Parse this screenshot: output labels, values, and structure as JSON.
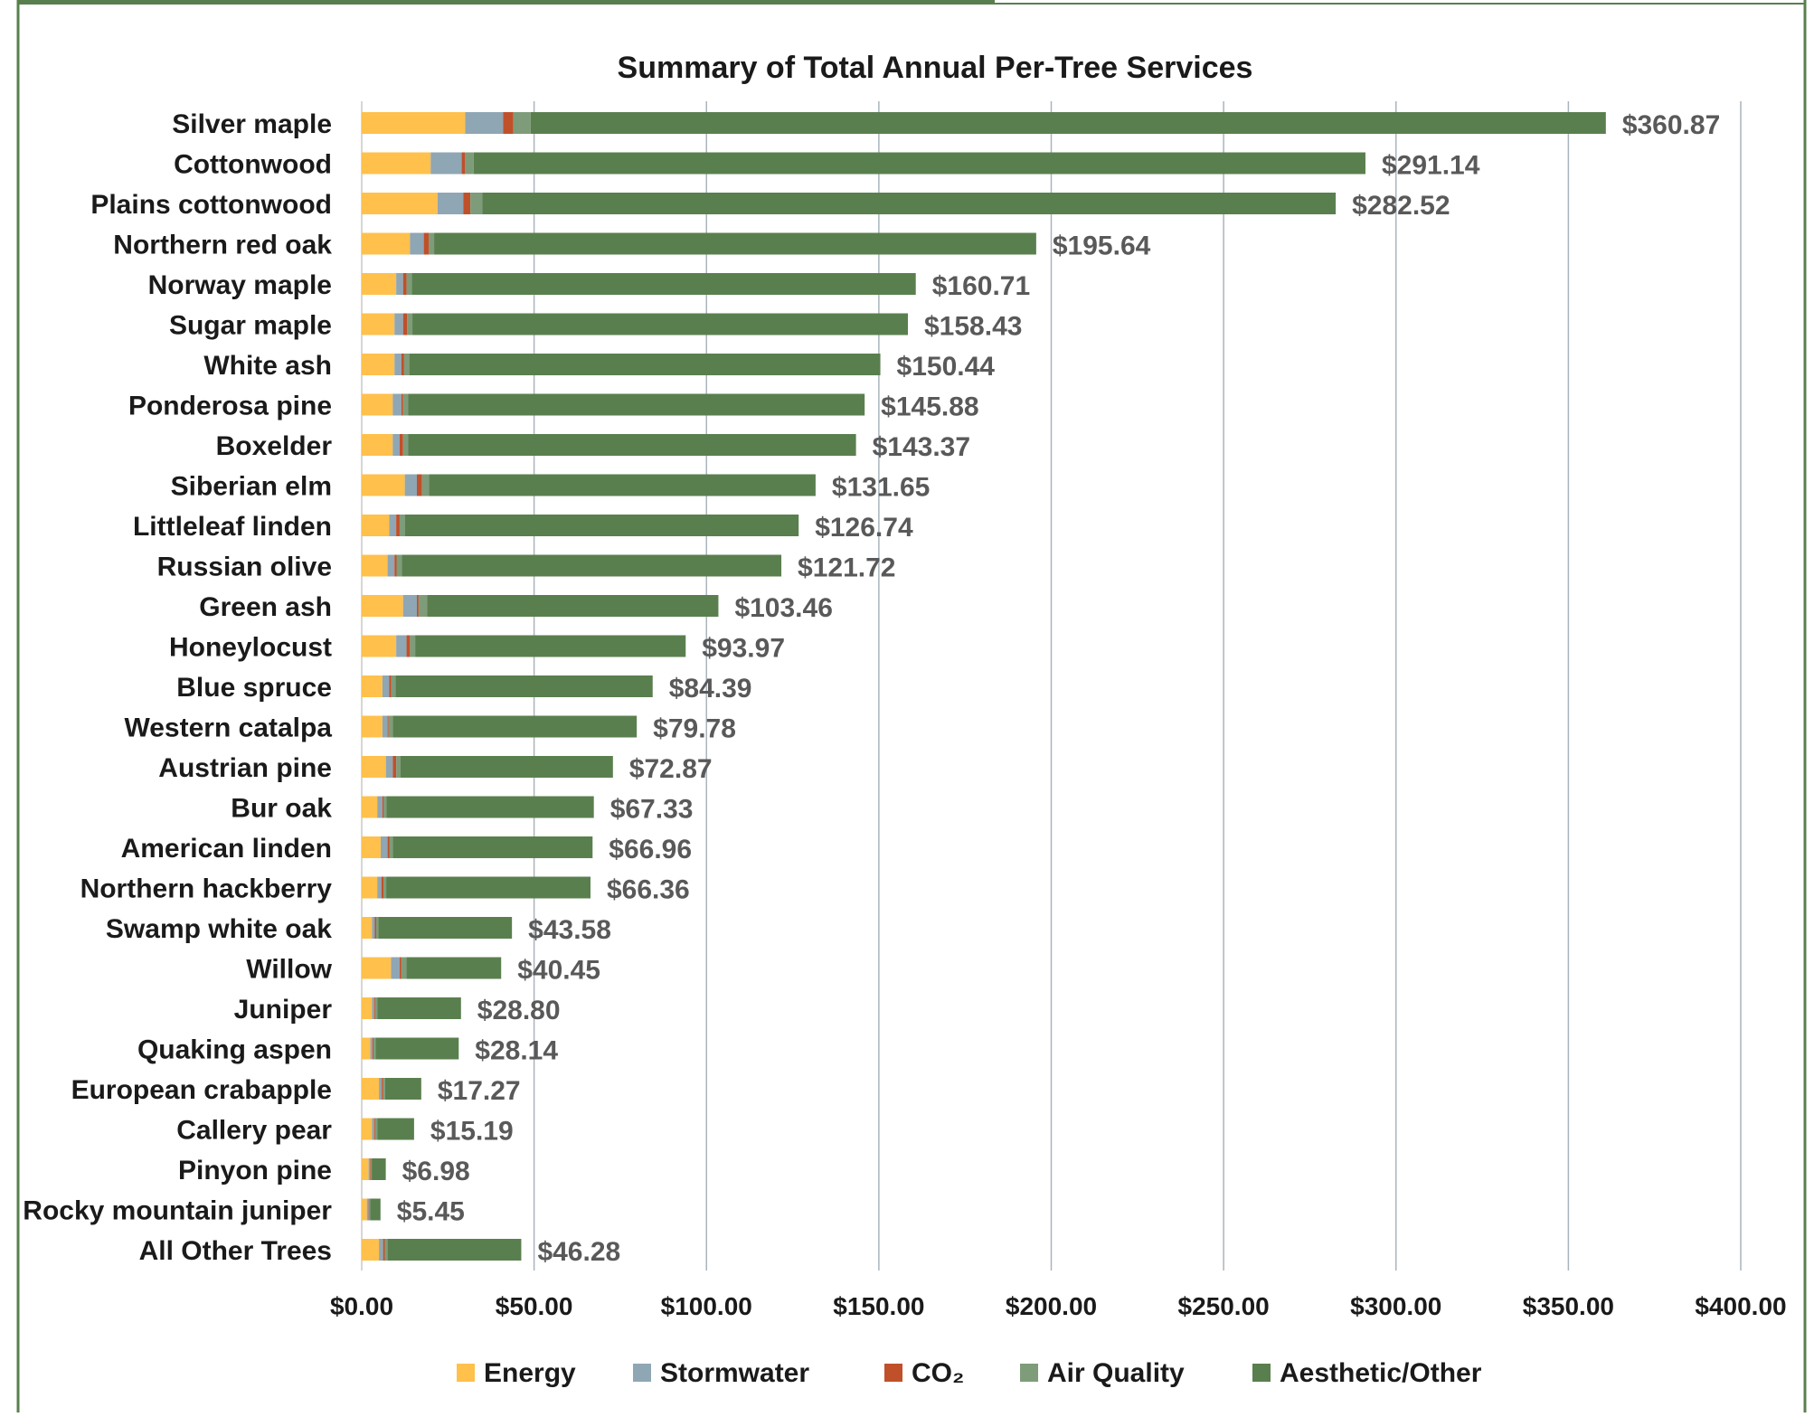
{
  "chart_data": {
    "type": "bar",
    "orientation": "horizontal",
    "stacked": true,
    "title": "Summary of Total Annual Per-Tree Services",
    "categories": [
      "Silver maple",
      "Cottonwood",
      "Plains cottonwood",
      "Northern red oak",
      "Norway maple",
      "Sugar maple",
      "White ash",
      "Ponderosa pine",
      "Boxelder",
      "Siberian elm",
      "Littleleaf linden",
      "Russian olive",
      "Green ash",
      "Honeylocust",
      "Blue spruce",
      "Western catalpa",
      "Austrian pine",
      "Bur oak",
      "American linden",
      "Northern hackberry",
      "Swamp white oak",
      "Willow",
      "Juniper",
      "Quaking aspen",
      "European crabapple",
      "Callery pear",
      "Pinyon pine",
      "Rocky mountain juniper",
      "All Other Trees"
    ],
    "series": [
      {
        "name": "Energy",
        "color": "#FFC04C",
        "values": [
          30,
          20,
          22,
          14,
          10,
          9.5,
          9.5,
          9,
          9,
          12.5,
          8,
          7.5,
          12,
          10,
          6,
          6,
          7,
          4.5,
          5.5,
          4.5,
          3,
          8.5,
          3,
          2.5,
          5,
          3,
          2,
          1.5,
          5
        ]
      },
      {
        "name": "Stormwater",
        "color": "#8FA6B4",
        "values": [
          11,
          9,
          7.5,
          4,
          2,
          2.5,
          2,
          2.5,
          2,
          3.5,
          2,
          2,
          4,
          3,
          2,
          1.5,
          2,
          1.5,
          2,
          1.2,
          0.8,
          2.5,
          0.6,
          0.6,
          0.8,
          0.6,
          0.4,
          0.5,
          1.2
        ]
      },
      {
        "name": "CO₂",
        "color": "#C0502A",
        "values": [
          3,
          1,
          2,
          1.5,
          1,
          1.2,
          0.8,
          0.5,
          1,
          1.5,
          1,
          0.6,
          0.5,
          1,
          0.6,
          0.3,
          1,
          0.4,
          0.5,
          0.6,
          0.4,
          0.5,
          0.3,
          0.3,
          0.4,
          0.3,
          0.2,
          0.2,
          0.5
        ]
      },
      {
        "name": "Air Quality",
        "color": "#7E9C7A",
        "values": [
          5,
          2.5,
          3.5,
          1.5,
          1.5,
          1.5,
          1.5,
          1.5,
          1.5,
          2,
          1.5,
          1.5,
          2.5,
          1.5,
          1.2,
          1.2,
          1.2,
          0.8,
          1,
          0.8,
          0.6,
          1.5,
          0.6,
          0.6,
          0.6,
          0.6,
          0.3,
          0.3,
          0.8
        ]
      },
      {
        "name": "Aesthetic/Other",
        "color": "#5A7F4E",
        "values": [
          311.87,
          258.64,
          247.52,
          174.64,
          146.21,
          143.73,
          136.64,
          132.38,
          129.87,
          112.15,
          114.24,
          110.12,
          84.46,
          78.47,
          74.59,
          70.78,
          61.67,
          60.13,
          57.96,
          59.26,
          38.78,
          27.45,
          24.3,
          24.14,
          10.47,
          10.69,
          4.08,
          2.95,
          38.78
        ]
      }
    ],
    "totals": [
      360.87,
      291.14,
      282.52,
      195.64,
      160.71,
      158.43,
      150.44,
      145.88,
      143.37,
      131.65,
      126.74,
      121.72,
      103.46,
      93.97,
      84.39,
      79.78,
      72.87,
      67.33,
      66.96,
      66.36,
      43.58,
      40.45,
      28.8,
      28.14,
      17.27,
      15.19,
      6.98,
      5.45,
      46.28
    ],
    "total_labels": [
      "$360.87",
      "$291.14",
      "$282.52",
      "$195.64",
      "$160.71",
      "$158.43",
      "$150.44",
      "$145.88",
      "$143.37",
      "$131.65",
      "$126.74",
      "$121.72",
      "$103.46",
      "$93.97",
      "$84.39",
      "$79.78",
      "$72.87",
      "$67.33",
      "$66.96",
      "$66.36",
      "$43.58",
      "$40.45",
      "$28.80",
      "$28.14",
      "$17.27",
      "$15.19",
      "$6.98",
      "$5.45",
      "$46.28"
    ],
    "xlim": [
      0,
      400
    ],
    "x_ticks": [
      0,
      50,
      100,
      150,
      200,
      250,
      300,
      350,
      400
    ],
    "x_tick_labels": [
      "$0.00",
      "$50.00",
      "$100.00",
      "$150.00",
      "$200.00",
      "$250.00",
      "$300.00",
      "$350.00",
      "$400.00"
    ],
    "xlabel": "",
    "ylabel": "",
    "grid": "vertical",
    "legend_position": "bottom",
    "legend_labels": [
      "Energy",
      "Stormwater",
      "CO₂",
      "Air Quality",
      "Aesthetic/Other"
    ],
    "frame_color": "#5A7F4E",
    "grid_color": "#AAB4BE"
  }
}
